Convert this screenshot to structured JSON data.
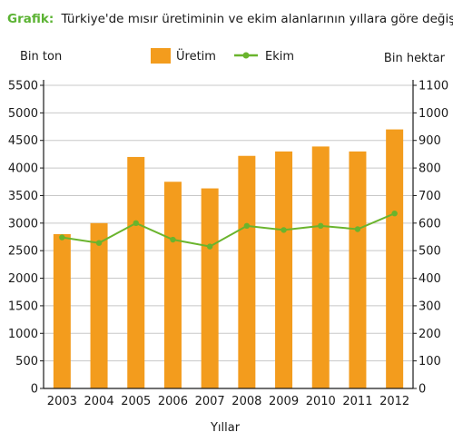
{
  "chart_data": {
    "type": "bar",
    "title_prefix": "Grafik:",
    "title": "Türkiye'de mısır üretiminin ve ekim alanlarının yıllara göre değişimi",
    "xlabel": "Yıllar",
    "ylabel_left": "Bin ton",
    "ylabel_right": "Bin hektar",
    "categories": [
      "2003",
      "2004",
      "2005",
      "2006",
      "2007",
      "2008",
      "2009",
      "2010",
      "2011",
      "2012"
    ],
    "ylim_left": [
      0,
      5500
    ],
    "ylim_right": [
      0,
      1100
    ],
    "yticks_left": [
      "0",
      "500",
      "1000",
      "1500",
      "2000",
      "2500",
      "3000",
      "3500",
      "4000",
      "4500",
      "5000",
      "5500"
    ],
    "yticks_right": [
      "0",
      "100",
      "200",
      "300",
      "400",
      "500",
      "600",
      "700",
      "800",
      "900",
      "1000",
      "1100"
    ],
    "grid": true,
    "legend_position": "top-center",
    "series": [
      {
        "name": "Üretim",
        "type": "bar",
        "axis": "left",
        "color": "#f39c1d",
        "values": [
          2800,
          3000,
          4200,
          3750,
          3630,
          4220,
          4300,
          4390,
          4300,
          4700
        ]
      },
      {
        "name": "Ekim",
        "type": "line",
        "axis": "right",
        "color": "#6ab42d",
        "values": [
          548,
          528,
          600,
          540,
          515,
          590,
          575,
          590,
          578,
          635
        ]
      }
    ]
  }
}
